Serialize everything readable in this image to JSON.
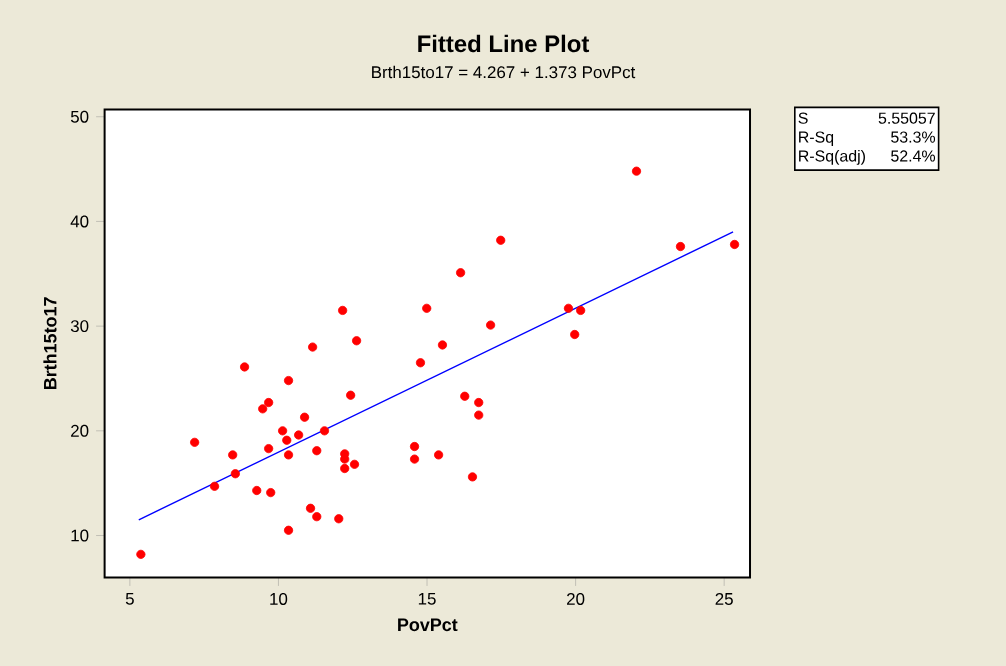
{
  "chart_data": {
    "type": "scatter",
    "title": "Fitted Line Plot",
    "subtitle": "Brth15to17 =  4.267 + 1.373 PovPct",
    "xlabel": "PovPct",
    "ylabel": "Brth15to17",
    "xlim": [
      4.15,
      25.87
    ],
    "ylim": [
      6.0,
      50.7
    ],
    "xticks": [
      5,
      10,
      15,
      20,
      25
    ],
    "yticks": [
      10,
      20,
      30,
      40,
      50
    ],
    "grid": false,
    "annotations": [
      "S",
      "5.55057",
      "R-Sq",
      "53.3%",
      "R-Sq(adj)",
      "52.4%"
    ],
    "series": [
      {
        "marker": "circle",
        "color": "#ff0000",
        "x": [
          5.37,
          7.18,
          7.85,
          8.46,
          8.55,
          8.86,
          9.27,
          9.47,
          9.67,
          9.67,
          9.74,
          10.14,
          10.28,
          10.34,
          10.34,
          10.34,
          10.68,
          10.88,
          11.08,
          11.15,
          11.29,
          11.29,
          11.55,
          12.03,
          12.16,
          12.23,
          12.23,
          12.23,
          12.43,
          12.56,
          12.63,
          14.58,
          14.58,
          14.78,
          14.99,
          15.39,
          15.52,
          16.13,
          16.27,
          16.53,
          16.74,
          16.74,
          17.14,
          17.48,
          19.76,
          19.97,
          20.17,
          22.05,
          23.53,
          25.35
        ],
        "values": [
          8.2,
          18.9,
          14.7,
          17.7,
          15.9,
          26.1,
          14.3,
          22.1,
          22.7,
          18.3,
          14.1,
          20.0,
          19.1,
          24.8,
          17.7,
          10.5,
          19.6,
          21.3,
          12.6,
          28.0,
          18.1,
          11.8,
          20.0,
          11.6,
          31.5,
          17.8,
          17.3,
          16.4,
          23.4,
          16.8,
          28.6,
          18.5,
          17.3,
          26.5,
          31.7,
          17.7,
          28.2,
          35.1,
          23.3,
          15.6,
          22.7,
          21.5,
          30.1,
          38.2,
          31.7,
          29.2,
          31.5,
          44.8,
          37.6,
          37.8
        ]
      },
      {
        "type": "line",
        "color": "#0000ff",
        "line_style": "solid",
        "marker": "none",
        "x": [
          5.3,
          25.3
        ],
        "values": [
          11.5,
          39.0
        ]
      }
    ]
  }
}
